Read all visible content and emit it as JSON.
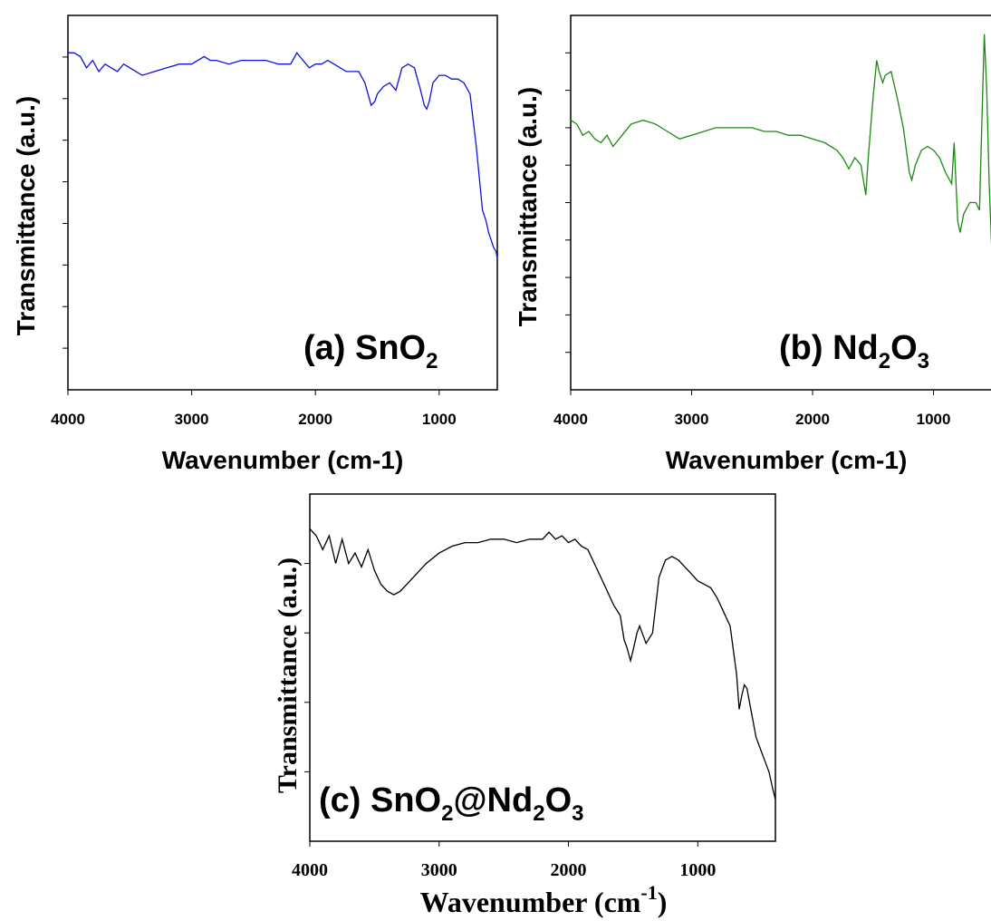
{
  "chart_data": [
    {
      "type": "line",
      "panel_label": "(a) SnO",
      "panel_label_sub": "2",
      "xlabel": "Wavenumber (cm-1)",
      "ylabel": "Transmittance (a.u.)",
      "xlim": [
        4000,
        530
      ],
      "ylim": [
        0,
        100
      ],
      "x_ticks": [
        4000,
        3000,
        2000,
        1000
      ],
      "grid": false,
      "color": "#1010e0",
      "series": [
        {
          "x": [
            4000,
            3950,
            3900,
            3850,
            3800,
            3750,
            3700,
            3650,
            3600,
            3550,
            3500,
            3450,
            3400,
            3300,
            3200,
            3100,
            3000,
            2900,
            2850,
            2800,
            2700,
            2600,
            2500,
            2400,
            2300,
            2200,
            2150,
            2100,
            2050,
            2000,
            1950,
            1900,
            1850,
            1800,
            1750,
            1700,
            1650,
            1600,
            1550,
            1520,
            1500,
            1450,
            1400,
            1350,
            1300,
            1250,
            1200,
            1150,
            1120,
            1100,
            1080,
            1050,
            1000,
            950,
            900,
            850,
            800,
            750,
            700,
            650,
            620,
            600,
            580,
            560,
            540,
            530
          ],
          "y": [
            90,
            90,
            89,
            86,
            88,
            85,
            87,
            86,
            85,
            87,
            86,
            85,
            84,
            85,
            86,
            87,
            87,
            89,
            88,
            88,
            87,
            88,
            88,
            88,
            87,
            87,
            90,
            88,
            86,
            87,
            87,
            88,
            87,
            86,
            85,
            85,
            85,
            82,
            76,
            77,
            79,
            81,
            82,
            80,
            86,
            87,
            86,
            80,
            76,
            75,
            77,
            82,
            84,
            84,
            83,
            83,
            82,
            79,
            65,
            48,
            45,
            42,
            40,
            38,
            37,
            35
          ]
        }
      ]
    },
    {
      "type": "line",
      "panel_label": "(b) Nd",
      "panel_label_sub": "2",
      "panel_label_mid": "O",
      "panel_label_sub2": "3",
      "xlabel": "Wavenumber (cm-1)",
      "ylabel": "Transmittance (a.u.)",
      "xlim": [
        4000,
        480
      ],
      "ylim": [
        0,
        100
      ],
      "x_ticks": [
        4000,
        3000,
        2000,
        1000
      ],
      "grid": false,
      "color": "#1a8a10",
      "series": [
        {
          "x": [
            4000,
            3950,
            3900,
            3850,
            3800,
            3750,
            3700,
            3650,
            3600,
            3500,
            3400,
            3300,
            3200,
            3100,
            3000,
            2900,
            2800,
            2700,
            2600,
            2500,
            2400,
            2300,
            2200,
            2100,
            2000,
            1900,
            1800,
            1750,
            1700,
            1650,
            1600,
            1580,
            1560,
            1540,
            1500,
            1470,
            1450,
            1420,
            1400,
            1350,
            1300,
            1250,
            1200,
            1180,
            1150,
            1100,
            1050,
            1000,
            950,
            900,
            850,
            830,
            800,
            780,
            750,
            700,
            650,
            620,
            600,
            580,
            560,
            540,
            520,
            500,
            480
          ],
          "y": [
            72,
            71,
            68,
            69,
            67,
            66,
            68,
            65,
            67,
            71,
            72,
            71,
            69,
            67,
            68,
            69,
            70,
            70,
            70,
            70,
            69,
            69,
            68,
            68,
            67,
            66,
            64,
            62,
            59,
            62,
            60,
            56,
            52,
            62,
            78,
            88,
            85,
            82,
            84,
            85,
            78,
            70,
            58,
            56,
            60,
            64,
            65,
            64,
            62,
            58,
            55,
            66,
            45,
            42,
            47,
            50,
            50,
            48,
            72,
            95,
            80,
            55,
            38,
            55,
            63
          ]
        }
      ]
    },
    {
      "type": "line",
      "panel_label": "(c) SnO",
      "panel_label_sub": "2",
      "panel_label_mid": "@Nd",
      "panel_label_sub2": "2",
      "panel_label_mid2": "O",
      "panel_label_sub3": "3",
      "xlabel": "Wavenumber (cm",
      "xlabel_sup": "-1",
      "xlabel_end": ")",
      "ylabel": "Transmittance (a.u.)",
      "xlim": [
        4000,
        400
      ],
      "ylim": [
        0,
        100
      ],
      "x_ticks": [
        4000,
        3000,
        2000,
        1000
      ],
      "grid": false,
      "color": "#000000",
      "series": [
        {
          "x": [
            4000,
            3950,
            3900,
            3850,
            3800,
            3750,
            3700,
            3650,
            3600,
            3550,
            3500,
            3450,
            3400,
            3350,
            3300,
            3200,
            3100,
            3000,
            2900,
            2800,
            2700,
            2600,
            2500,
            2400,
            2300,
            2200,
            2150,
            2100,
            2050,
            2000,
            1950,
            1900,
            1850,
            1800,
            1750,
            1700,
            1650,
            1600,
            1570,
            1550,
            1520,
            1500,
            1470,
            1450,
            1430,
            1400,
            1350,
            1300,
            1250,
            1200,
            1150,
            1100,
            1050,
            1000,
            950,
            900,
            850,
            800,
            750,
            700,
            680,
            660,
            640,
            620,
            600,
            580,
            550,
            500,
            450,
            420,
            400
          ],
          "y": [
            90,
            88,
            84,
            88,
            80,
            87,
            80,
            83,
            79,
            84,
            78,
            74,
            72,
            71,
            72,
            76,
            80,
            83,
            85,
            86,
            86,
            87,
            87,
            86,
            87,
            87,
            89,
            87,
            88,
            86,
            87,
            85,
            84,
            80,
            76,
            72,
            68,
            65,
            58,
            56,
            52,
            55,
            60,
            62,
            60,
            57,
            60,
            76,
            81,
            82,
            81,
            79,
            77,
            75,
            74,
            73,
            70,
            66,
            62,
            48,
            38,
            42,
            45,
            44,
            40,
            36,
            30,
            25,
            20,
            15,
            12
          ]
        }
      ]
    }
  ]
}
